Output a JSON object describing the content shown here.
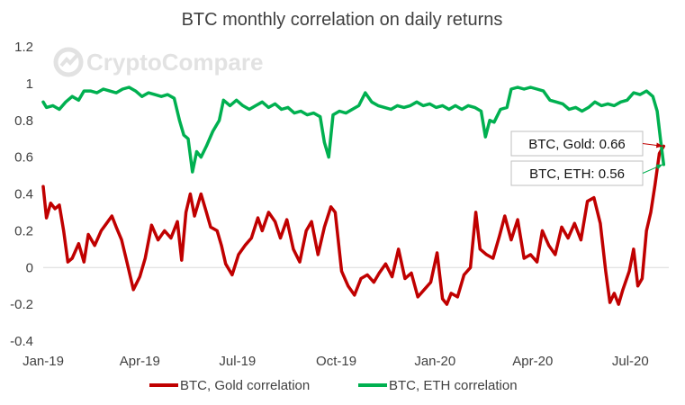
{
  "chart_data": {
    "type": "line",
    "title": "BTC monthly correlation on daily returns",
    "watermark": "CryptoCompare",
    "xlabel": "",
    "ylabel": "",
    "x_range": [
      "2019-01-01",
      "2020-08-10"
    ],
    "x_tick_labels": [
      "Jan-19",
      "Apr-19",
      "Jul-19",
      "Oct-19",
      "Jan-20",
      "Apr-20",
      "Jul-20"
    ],
    "x_tick_dates": [
      "2019-01-01",
      "2019-04-01",
      "2019-07-01",
      "2019-10-01",
      "2020-01-01",
      "2020-04-01",
      "2020-07-01"
    ],
    "ylim": [
      -0.4,
      1.2
    ],
    "y_ticks": [
      -0.4,
      -0.2,
      0,
      0.2,
      0.4,
      0.6,
      0.8,
      1,
      1.2
    ],
    "y_tick_labels": [
      "-0.4",
      "-0.2",
      "0",
      "0.2",
      "0.4",
      "0.6",
      "0.8",
      "1",
      "1.2"
    ],
    "grid": false,
    "legend_position": "bottom",
    "series": [
      {
        "name": "BTC, Gold correlation",
        "color": "#c00000",
        "points": [
          [
            "2019-01-01",
            0.44
          ],
          [
            "2019-01-04",
            0.27
          ],
          [
            "2019-01-08",
            0.35
          ],
          [
            "2019-01-12",
            0.32
          ],
          [
            "2019-01-16",
            0.34
          ],
          [
            "2019-01-20",
            0.2
          ],
          [
            "2019-01-24",
            0.03
          ],
          [
            "2019-01-28",
            0.05
          ],
          [
            "2019-02-03",
            0.13
          ],
          [
            "2019-02-08",
            0.03
          ],
          [
            "2019-02-12",
            0.18
          ],
          [
            "2019-02-18",
            0.12
          ],
          [
            "2019-02-24",
            0.2
          ],
          [
            "2019-03-01",
            0.24
          ],
          [
            "2019-03-06",
            0.28
          ],
          [
            "2019-03-10",
            0.22
          ],
          [
            "2019-03-15",
            0.15
          ],
          [
            "2019-03-20",
            0.03
          ],
          [
            "2019-03-26",
            -0.12
          ],
          [
            "2019-04-01",
            -0.05
          ],
          [
            "2019-04-06",
            0.05
          ],
          [
            "2019-04-12",
            0.23
          ],
          [
            "2019-04-18",
            0.15
          ],
          [
            "2019-04-24",
            0.2
          ],
          [
            "2019-04-30",
            0.16
          ],
          [
            "2019-05-06",
            0.25
          ],
          [
            "2019-05-10",
            0.04
          ],
          [
            "2019-05-14",
            0.3
          ],
          [
            "2019-05-18",
            0.4
          ],
          [
            "2019-05-22",
            0.28
          ],
          [
            "2019-05-28",
            0.4
          ],
          [
            "2019-06-02",
            0.3
          ],
          [
            "2019-06-06",
            0.22
          ],
          [
            "2019-06-12",
            0.2
          ],
          [
            "2019-06-16",
            0.12
          ],
          [
            "2019-06-20",
            0.02
          ],
          [
            "2019-06-26",
            -0.04
          ],
          [
            "2019-07-02",
            0.07
          ],
          [
            "2019-07-08",
            0.12
          ],
          [
            "2019-07-14",
            0.16
          ],
          [
            "2019-07-20",
            0.27
          ],
          [
            "2019-07-24",
            0.2
          ],
          [
            "2019-07-30",
            0.3
          ],
          [
            "2019-08-05",
            0.25
          ],
          [
            "2019-08-10",
            0.16
          ],
          [
            "2019-08-16",
            0.26
          ],
          [
            "2019-08-22",
            0.1
          ],
          [
            "2019-08-28",
            0.03
          ],
          [
            "2019-09-03",
            0.2
          ],
          [
            "2019-09-08",
            0.25
          ],
          [
            "2019-09-14",
            0.07
          ],
          [
            "2019-09-20",
            0.22
          ],
          [
            "2019-09-26",
            0.33
          ],
          [
            "2019-09-30",
            0.3
          ],
          [
            "2019-10-06",
            -0.02
          ],
          [
            "2019-10-12",
            -0.1
          ],
          [
            "2019-10-18",
            -0.15
          ],
          [
            "2019-10-24",
            -0.06
          ],
          [
            "2019-10-30",
            -0.04
          ],
          [
            "2019-11-05",
            -0.08
          ],
          [
            "2019-11-10",
            -0.03
          ],
          [
            "2019-11-16",
            0.02
          ],
          [
            "2019-11-22",
            -0.05
          ],
          [
            "2019-11-28",
            0.1
          ],
          [
            "2019-12-04",
            -0.06
          ],
          [
            "2019-12-10",
            -0.03
          ],
          [
            "2019-12-16",
            -0.16
          ],
          [
            "2019-12-22",
            -0.12
          ],
          [
            "2019-12-28",
            -0.08
          ],
          [
            "2020-01-03",
            0.08
          ],
          [
            "2020-01-08",
            -0.17
          ],
          [
            "2020-01-12",
            -0.2
          ],
          [
            "2020-01-16",
            -0.14
          ],
          [
            "2020-01-22",
            -0.16
          ],
          [
            "2020-01-28",
            -0.04
          ],
          [
            "2020-02-03",
            0.0
          ],
          [
            "2020-02-08",
            0.3
          ],
          [
            "2020-02-12",
            0.1
          ],
          [
            "2020-02-18",
            0.07
          ],
          [
            "2020-02-24",
            0.05
          ],
          [
            "2020-03-01",
            0.17
          ],
          [
            "2020-03-06",
            0.28
          ],
          [
            "2020-03-12",
            0.15
          ],
          [
            "2020-03-18",
            0.26
          ],
          [
            "2020-03-24",
            0.05
          ],
          [
            "2020-03-30",
            0.07
          ],
          [
            "2020-04-05",
            0.03
          ],
          [
            "2020-04-10",
            0.2
          ],
          [
            "2020-04-16",
            0.12
          ],
          [
            "2020-04-22",
            0.07
          ],
          [
            "2020-04-28",
            0.22
          ],
          [
            "2020-05-04",
            0.16
          ],
          [
            "2020-05-10",
            0.24
          ],
          [
            "2020-05-16",
            0.15
          ],
          [
            "2020-05-22",
            0.36
          ],
          [
            "2020-05-28",
            0.38
          ],
          [
            "2020-06-03",
            0.24
          ],
          [
            "2020-06-08",
            -0.02
          ],
          [
            "2020-06-12",
            -0.19
          ],
          [
            "2020-06-16",
            -0.14
          ],
          [
            "2020-06-20",
            -0.2
          ],
          [
            "2020-06-24",
            -0.12
          ],
          [
            "2020-06-30",
            -0.02
          ],
          [
            "2020-07-04",
            0.1
          ],
          [
            "2020-07-08",
            -0.1
          ],
          [
            "2020-07-12",
            -0.06
          ],
          [
            "2020-07-16",
            0.2
          ],
          [
            "2020-07-20",
            0.3
          ],
          [
            "2020-07-24",
            0.45
          ],
          [
            "2020-07-28",
            0.62
          ],
          [
            "2020-08-01",
            0.66
          ]
        ]
      },
      {
        "name": "BTC, ETH correlation",
        "color": "#00b050",
        "points": [
          [
            "2019-01-01",
            0.9
          ],
          [
            "2019-01-04",
            0.87
          ],
          [
            "2019-01-10",
            0.88
          ],
          [
            "2019-01-16",
            0.86
          ],
          [
            "2019-01-22",
            0.9
          ],
          [
            "2019-01-28",
            0.93
          ],
          [
            "2019-02-03",
            0.91
          ],
          [
            "2019-02-08",
            0.96
          ],
          [
            "2019-02-14",
            0.96
          ],
          [
            "2019-02-20",
            0.95
          ],
          [
            "2019-02-26",
            0.97
          ],
          [
            "2019-03-04",
            0.96
          ],
          [
            "2019-03-10",
            0.95
          ],
          [
            "2019-03-16",
            0.97
          ],
          [
            "2019-03-22",
            0.98
          ],
          [
            "2019-03-28",
            0.96
          ],
          [
            "2019-04-03",
            0.93
          ],
          [
            "2019-04-09",
            0.95
          ],
          [
            "2019-04-15",
            0.94
          ],
          [
            "2019-04-21",
            0.93
          ],
          [
            "2019-04-27",
            0.94
          ],
          [
            "2019-05-03",
            0.92
          ],
          [
            "2019-05-08",
            0.8
          ],
          [
            "2019-05-12",
            0.72
          ],
          [
            "2019-05-16",
            0.7
          ],
          [
            "2019-05-20",
            0.52
          ],
          [
            "2019-05-24",
            0.63
          ],
          [
            "2019-05-28",
            0.6
          ],
          [
            "2019-06-02",
            0.66
          ],
          [
            "2019-06-08",
            0.74
          ],
          [
            "2019-06-14",
            0.8
          ],
          [
            "2019-06-18",
            0.91
          ],
          [
            "2019-06-24",
            0.88
          ],
          [
            "2019-06-30",
            0.91
          ],
          [
            "2019-07-06",
            0.88
          ],
          [
            "2019-07-12",
            0.86
          ],
          [
            "2019-07-18",
            0.88
          ],
          [
            "2019-07-24",
            0.9
          ],
          [
            "2019-07-30",
            0.87
          ],
          [
            "2019-08-05",
            0.89
          ],
          [
            "2019-08-11",
            0.86
          ],
          [
            "2019-08-17",
            0.87
          ],
          [
            "2019-08-23",
            0.84
          ],
          [
            "2019-08-29",
            0.85
          ],
          [
            "2019-09-04",
            0.83
          ],
          [
            "2019-09-10",
            0.84
          ],
          [
            "2019-09-16",
            0.82
          ],
          [
            "2019-09-20",
            0.68
          ],
          [
            "2019-09-24",
            0.6
          ],
          [
            "2019-09-28",
            0.83
          ],
          [
            "2019-10-04",
            0.85
          ],
          [
            "2019-10-10",
            0.84
          ],
          [
            "2019-10-16",
            0.86
          ],
          [
            "2019-10-22",
            0.88
          ],
          [
            "2019-10-28",
            0.95
          ],
          [
            "2019-11-03",
            0.9
          ],
          [
            "2019-11-09",
            0.88
          ],
          [
            "2019-11-15",
            0.87
          ],
          [
            "2019-11-21",
            0.86
          ],
          [
            "2019-11-27",
            0.88
          ],
          [
            "2019-12-03",
            0.87
          ],
          [
            "2019-12-09",
            0.88
          ],
          [
            "2019-12-15",
            0.9
          ],
          [
            "2019-12-21",
            0.88
          ],
          [
            "2019-12-27",
            0.89
          ],
          [
            "2020-01-02",
            0.87
          ],
          [
            "2020-01-08",
            0.88
          ],
          [
            "2020-01-14",
            0.86
          ],
          [
            "2020-01-20",
            0.88
          ],
          [
            "2020-01-26",
            0.86
          ],
          [
            "2020-02-01",
            0.88
          ],
          [
            "2020-02-07",
            0.87
          ],
          [
            "2020-02-13",
            0.85
          ],
          [
            "2020-02-17",
            0.71
          ],
          [
            "2020-02-21",
            0.8
          ],
          [
            "2020-02-25",
            0.79
          ],
          [
            "2020-03-02",
            0.86
          ],
          [
            "2020-03-08",
            0.87
          ],
          [
            "2020-03-12",
            0.97
          ],
          [
            "2020-03-18",
            0.98
          ],
          [
            "2020-03-24",
            0.97
          ],
          [
            "2020-03-30",
            0.98
          ],
          [
            "2020-04-05",
            0.97
          ],
          [
            "2020-04-11",
            0.96
          ],
          [
            "2020-04-17",
            0.91
          ],
          [
            "2020-04-23",
            0.9
          ],
          [
            "2020-04-29",
            0.89
          ],
          [
            "2020-05-05",
            0.86
          ],
          [
            "2020-05-11",
            0.87
          ],
          [
            "2020-05-17",
            0.85
          ],
          [
            "2020-05-23",
            0.87
          ],
          [
            "2020-05-29",
            0.9
          ],
          [
            "2020-06-04",
            0.88
          ],
          [
            "2020-06-10",
            0.89
          ],
          [
            "2020-06-16",
            0.88
          ],
          [
            "2020-06-22",
            0.9
          ],
          [
            "2020-06-28",
            0.91
          ],
          [
            "2020-07-04",
            0.95
          ],
          [
            "2020-07-10",
            0.94
          ],
          [
            "2020-07-16",
            0.96
          ],
          [
            "2020-07-22",
            0.93
          ],
          [
            "2020-07-26",
            0.85
          ],
          [
            "2020-07-29",
            0.7
          ],
          [
            "2020-08-01",
            0.56
          ]
        ]
      }
    ],
    "annotations": [
      {
        "text": "BTC, Gold: 0.66",
        "series": 0,
        "x": "2020-08-01",
        "y": 0.66
      },
      {
        "text": "BTC, ETH: 0.56",
        "series": 1,
        "x": "2020-08-01",
        "y": 0.56
      }
    ]
  }
}
